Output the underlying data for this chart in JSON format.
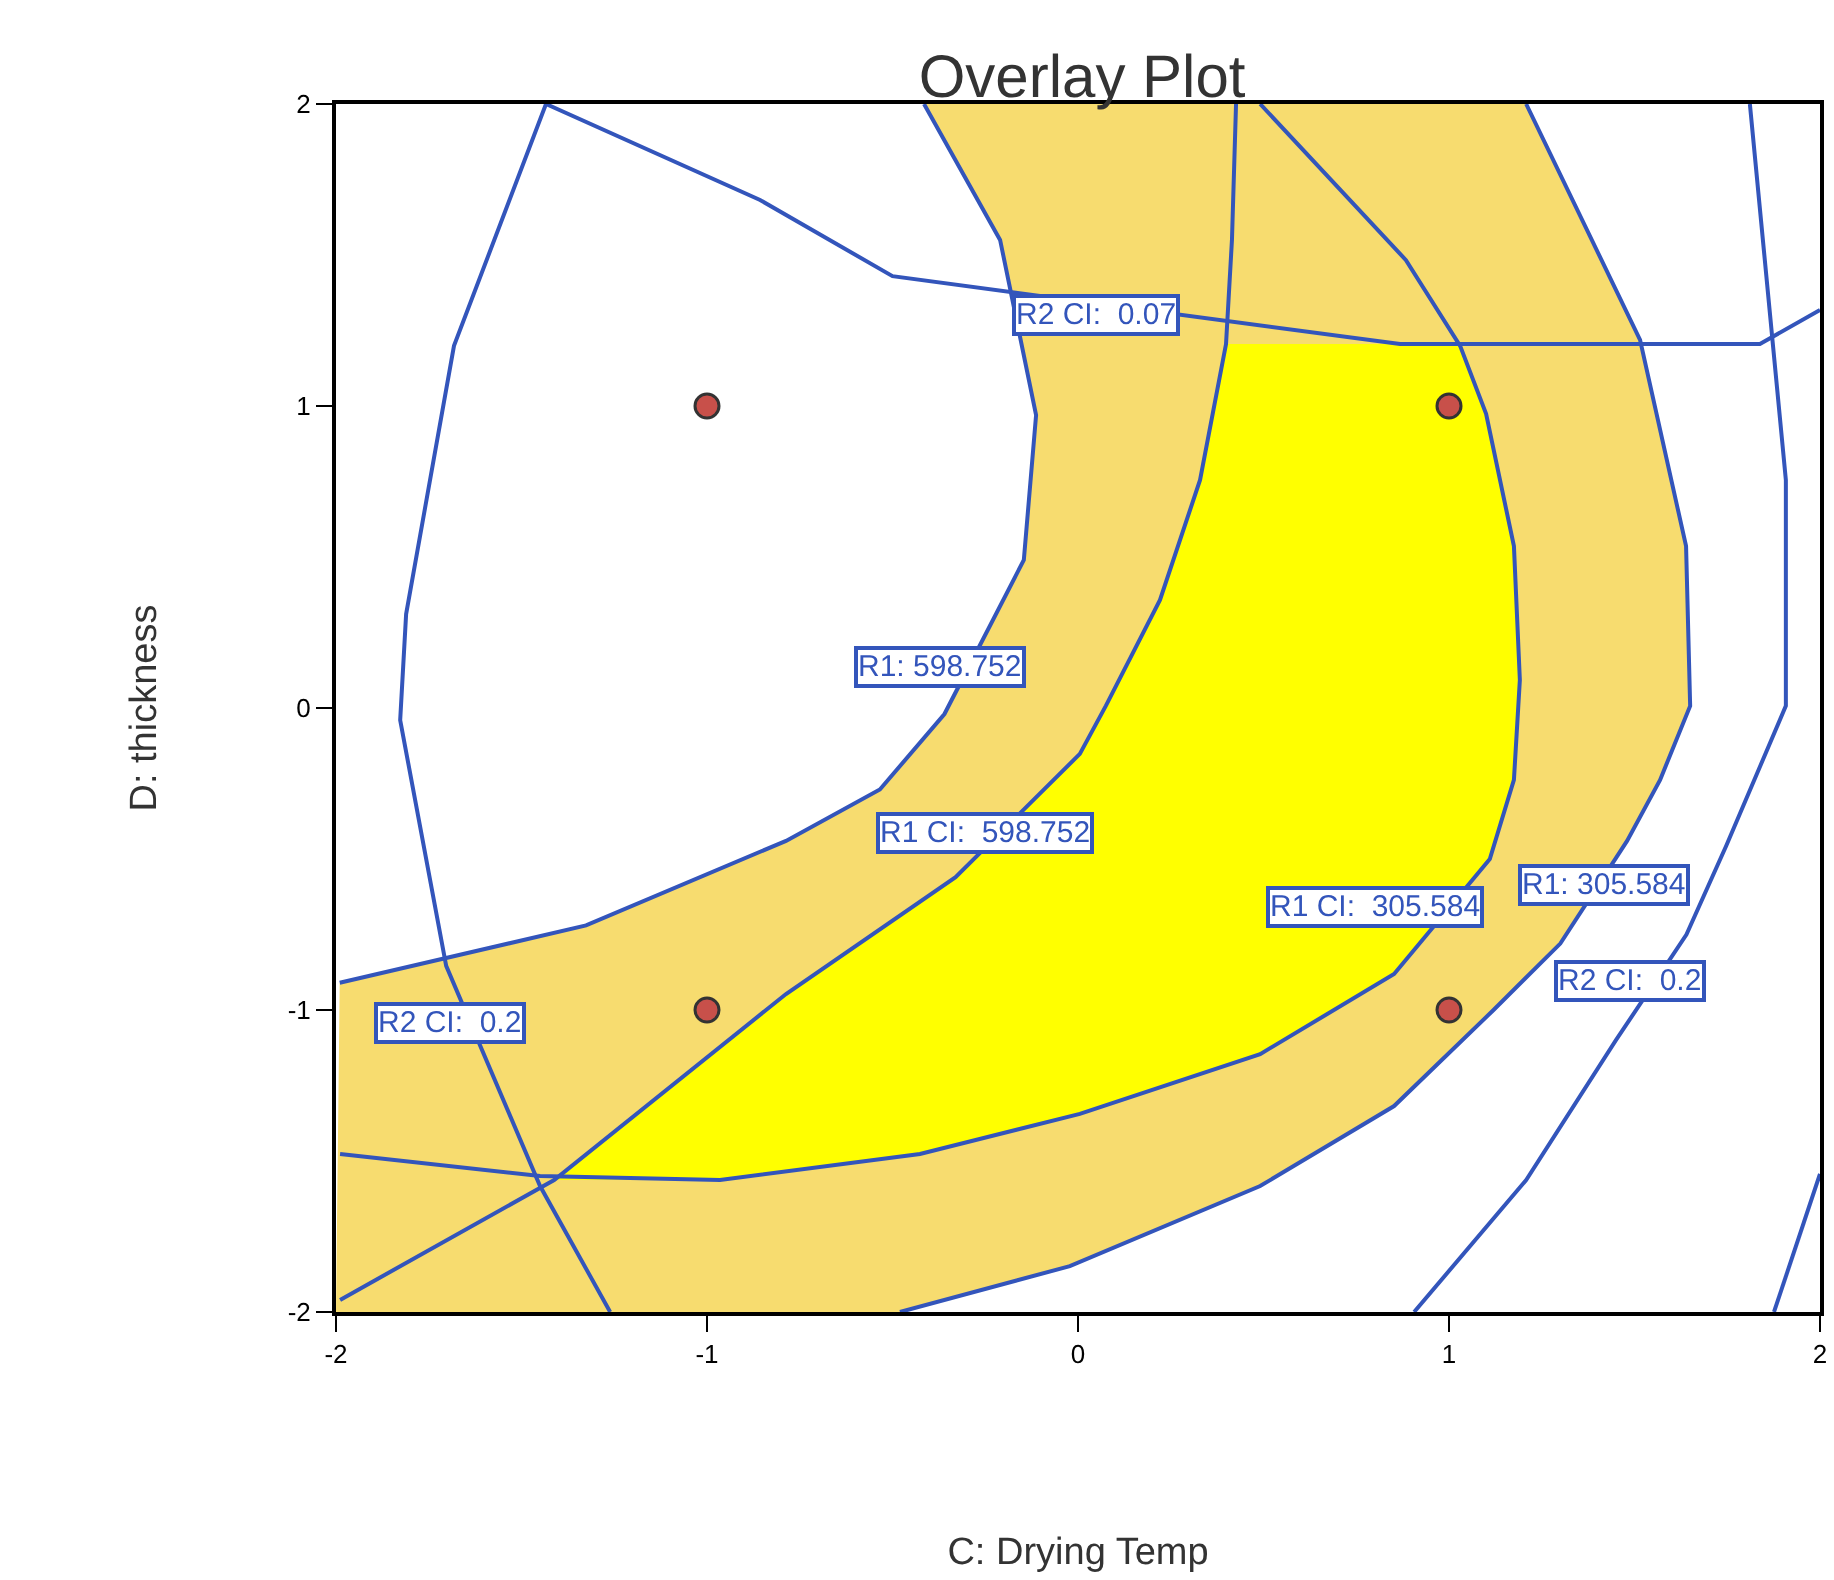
{
  "chart_data": {
    "type": "line",
    "title": "Overlay Plot",
    "xlabel": "C: Drying Temp",
    "ylabel": "D: thickness",
    "xlim": [
      -2,
      2
    ],
    "xticks": [
      -2,
      -1,
      0,
      1,
      2
    ],
    "ylim": [
      -2,
      2
    ],
    "yticks": [
      -2,
      -1,
      0,
      1,
      2
    ],
    "grid": false,
    "legend": false,
    "line_style": "solid",
    "series": [
      {
        "type": "area",
        "color": "#f7dc6f",
        "x": [
          -0.415,
          -0.21,
          -0.113,
          -0.146,
          -0.36,
          -0.534,
          -0.787,
          -1.326,
          -1.99,
          -2,
          -0.48,
          -0.022,
          0.491,
          0.852,
          1.12,
          1.3,
          1.48,
          1.569,
          1.65,
          1.639,
          1.515,
          1.208
        ],
        "values": [
          2,
          1.55,
          0.97,
          0.49,
          -0.02,
          -0.27,
          -0.44,
          -0.72,
          -0.91,
          -2,
          -2,
          -1.848,
          -1.583,
          -1.318,
          -1.0,
          -0.78,
          -0.44,
          -0.238,
          0.007,
          0.536,
          1.219,
          2
        ]
      },
      {
        "type": "area",
        "color": "#ffff00",
        "x": [
          0.399,
          0.329,
          0.221,
          0.075,
          0.005,
          -0.33,
          -0.787,
          -1.412,
          -0.965,
          -0.426,
          0.005,
          0.491,
          0.852,
          1.11,
          1.175,
          1.191,
          1.175,
          1.1,
          1.03
        ],
        "values": [
          1.205,
          0.755,
          0.358,
          0.007,
          -0.152,
          -0.56,
          -0.947,
          -1.563,
          -1.563,
          -1.477,
          -1.344,
          -1.146,
          -0.881,
          -0.5,
          -0.238,
          0.093,
          0.536,
          0.974,
          1.205
        ]
      },
      {
        "color": "#3355bb",
        "x": [
          -0.415,
          -0.21,
          -0.113,
          -0.146,
          -0.36,
          -0.534,
          -0.787,
          -1.326,
          -1.99
        ],
        "values": [
          2,
          1.55,
          0.97,
          0.49,
          -0.02,
          -0.27,
          -0.44,
          -0.72,
          -0.91
        ]
      },
      {
        "color": "#3355bb",
        "x": [
          0.426,
          0.415,
          0.399,
          0.329,
          0.221,
          0.075,
          0.005,
          -0.33,
          -0.787,
          -1.412,
          -1.989
        ],
        "values": [
          2,
          1.55,
          1.205,
          0.755,
          0.358,
          0.007,
          -0.152,
          -0.56,
          -0.947,
          -1.563,
          -1.96
        ]
      },
      {
        "color": "#3355bb",
        "x": [
          0.491,
          0.884,
          1.03,
          1.1,
          1.175,
          1.191,
          1.175,
          1.11,
          0.852,
          0.491,
          0.005,
          -0.426,
          -0.965,
          -1.45,
          -1.989
        ],
        "values": [
          2,
          1.483,
          1.199,
          0.974,
          0.536,
          0.093,
          -0.238,
          -0.5,
          -0.881,
          -1.146,
          -1.344,
          -1.477,
          -1.563,
          -1.55,
          -1.477
        ]
      },
      {
        "color": "#3355bb",
        "x": [
          1.208,
          1.515,
          1.639,
          1.65,
          1.569,
          1.48,
          1.3,
          1.12,
          0.852,
          0.491,
          -0.022,
          -0.48
        ],
        "values": [
          2,
          1.219,
          0.536,
          0.007,
          -0.238,
          -0.44,
          -0.78,
          -1.0,
          -1.318,
          -1.583,
          -1.848,
          -2
        ]
      },
      {
        "color": "#3355bb",
        "x": [
          1.811,
          1.908,
          1.908,
          1.747,
          1.64,
          1.45,
          1.208,
          0.906
        ],
        "values": [
          2,
          0.755,
          0.007,
          -0.457,
          -0.75,
          -1.1,
          -1.563,
          -2
        ]
      },
      {
        "color": "#3355bb",
        "x": [
          2,
          1.876
        ],
        "values": [
          -1.543,
          -2
        ]
      },
      {
        "color": "#3355bb",
        "x": [
          -1.434,
          -0.857,
          -0.5,
          0.868,
          1.838,
          2
        ],
        "values": [
          2,
          1.682,
          1.43,
          1.205,
          1.205,
          1.318
        ]
      },
      {
        "color": "#3355bb",
        "x": [
          -1.434,
          -1.682,
          -1.811,
          -1.827,
          -1.703,
          -1.45,
          -1.261
        ],
        "values": [
          2,
          1.199,
          0.311,
          -0.04,
          -0.854,
          -1.583,
          -2
        ]
      },
      {
        "type": "scatter",
        "color": "#c8504a",
        "marker": "circle",
        "x": [
          -1,
          1,
          -1,
          1
        ],
        "values": [
          1,
          1,
          -1,
          -1
        ]
      }
    ],
    "annotations": [
      "R2 CI:  0.07",
      "R1: 598.752",
      "R1 CI:  598.752",
      "R1: 305.584",
      "R1 CI:  305.584",
      "R2 CI:  0.2",
      "R2 CI:  0.2"
    ]
  }
}
